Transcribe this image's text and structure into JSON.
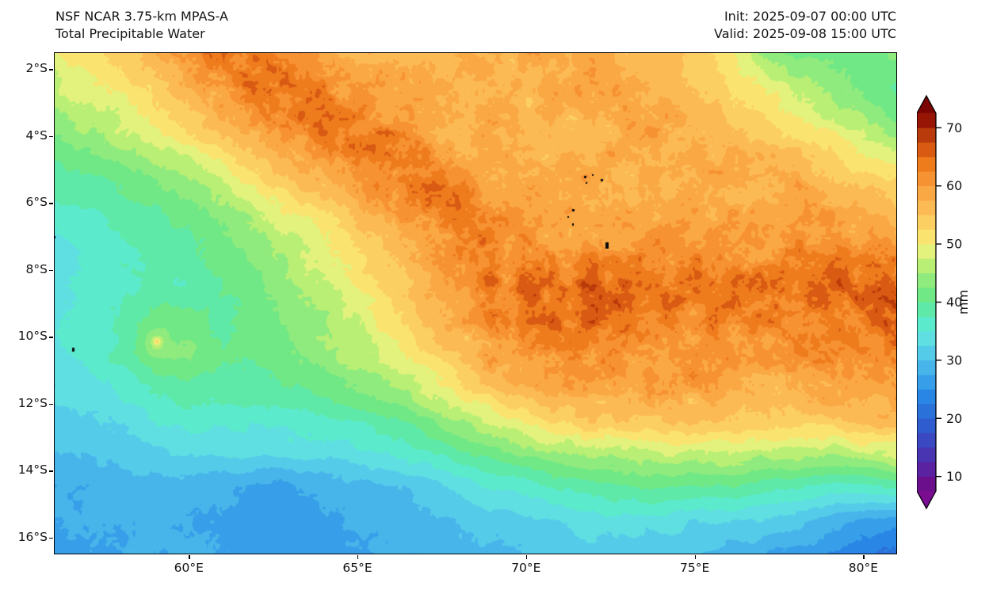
{
  "header": {
    "title_line1": "NSF NCAR 3.75-km MPAS-A",
    "title_line2": "Total Precipitable Water",
    "init_text": "Init: 2025-09-07 00:00 UTC",
    "valid_text": "Valid: 2025-09-08 15:00 UTC"
  },
  "chart_data": {
    "type": "heatmap",
    "title": "Total Precipitable Water",
    "units": "mm",
    "colorbar_label": "mm",
    "lon_min": 56,
    "lon_max": 81,
    "lat_min": 1.5,
    "lat_max": 16.5,
    "x_ticks": [
      {
        "value": 60,
        "label": "60°E"
      },
      {
        "value": 65,
        "label": "65°E"
      },
      {
        "value": 70,
        "label": "70°E"
      },
      {
        "value": 75,
        "label": "75°E"
      },
      {
        "value": 80,
        "label": "80°E"
      }
    ],
    "y_ticks": [
      {
        "value": 2,
        "label": "2°S"
      },
      {
        "value": 4,
        "label": "4°S"
      },
      {
        "value": 6,
        "label": "6°S"
      },
      {
        "value": 8,
        "label": "8°S"
      },
      {
        "value": 10,
        "label": "10°S"
      },
      {
        "value": 12,
        "label": "12°S"
      },
      {
        "value": 14,
        "label": "14°S"
      },
      {
        "value": 16,
        "label": "16°S"
      }
    ],
    "colorbar_ticks": [
      70,
      60,
      50,
      40,
      30,
      20,
      10
    ],
    "level_min": 7.5,
    "level_step": 2.5,
    "colors": [
      "#6b0f8c",
      "#5a21a0",
      "#4934b2",
      "#3a48c2",
      "#2f5ccf",
      "#2a71da",
      "#2a86e4",
      "#379fe9",
      "#47b5ea",
      "#55cbea",
      "#5fdfe2",
      "#5ceacd",
      "#5fe9a8",
      "#70e886",
      "#8feb7d",
      "#b8ef74",
      "#e2f27c",
      "#fbe370",
      "#fccf63",
      "#fcba55",
      "#faa843",
      "#f79232",
      "#ee7c1d",
      "#d95a12",
      "#b93a0a",
      "#961505"
    ],
    "under_color": "#7a0d92",
    "over_color": "#7a0503",
    "grid_lons": [
      56,
      57,
      58,
      59,
      60,
      61,
      62,
      63,
      64,
      65,
      66,
      67,
      68,
      69,
      70,
      71,
      72,
      73,
      74,
      75,
      76,
      77,
      78,
      79,
      80,
      81
    ],
    "grid_lats": [
      1.5,
      2.5,
      3.5,
      4.5,
      5.5,
      6.5,
      7.5,
      8.5,
      9.5,
      10.5,
      11.5,
      12.5,
      13.5,
      14.5,
      15.5,
      16.5
    ],
    "values": [
      [
        50,
        52,
        54,
        57,
        60,
        64,
        63,
        60,
        58,
        57,
        57,
        57,
        57,
        58,
        58,
        58,
        58,
        57,
        56,
        54,
        50,
        45,
        41,
        42,
        40,
        43
      ],
      [
        47,
        49,
        51,
        54,
        57,
        61,
        64,
        65,
        62,
        59,
        58,
        57,
        57,
        57,
        57,
        58,
        58,
        58,
        57,
        55,
        53,
        50,
        47,
        44,
        42,
        40
      ],
      [
        44,
        46,
        48,
        50,
        53,
        57,
        60,
        63,
        65,
        63,
        60,
        58,
        57,
        57,
        57,
        57,
        57,
        58,
        58,
        57,
        55,
        53,
        50,
        48,
        45,
        42
      ],
      [
        41,
        42,
        44,
        46,
        49,
        52,
        55,
        58,
        62,
        65,
        64,
        62,
        59,
        58,
        57,
        57,
        57,
        58,
        58,
        58,
        58,
        57,
        55,
        53,
        50,
        48
      ],
      [
        38,
        39,
        40,
        42,
        44,
        47,
        50,
        53,
        57,
        60,
        63,
        65,
        62,
        59,
        58,
        58,
        58,
        58,
        58,
        58,
        59,
        58,
        58,
        56,
        55,
        53
      ],
      [
        36,
        37,
        38,
        39,
        41,
        43,
        46,
        49,
        52,
        55,
        58,
        62,
        64,
        62,
        60,
        59,
        58,
        58,
        59,
        59,
        59,
        60,
        60,
        59,
        58,
        56
      ],
      [
        33,
        36,
        37,
        38,
        39,
        41,
        43,
        46,
        49,
        52,
        55,
        59,
        62,
        63,
        62,
        61,
        61,
        61,
        61,
        61,
        61,
        61,
        62,
        62,
        61,
        60
      ],
      [
        34,
        36,
        37,
        38,
        38,
        40,
        42,
        44,
        47,
        50,
        53,
        57,
        60,
        63,
        65,
        66,
        66,
        65,
        64,
        64,
        64,
        64,
        65,
        65,
        66,
        66
      ],
      [
        35,
        36,
        38,
        41,
        41,
        39,
        41,
        43,
        45,
        48,
        51,
        55,
        58,
        62,
        64,
        65,
        65,
        64,
        63,
        63,
        62,
        63,
        63,
        64,
        64,
        65
      ],
      [
        34,
        36,
        38,
        43,
        43,
        40,
        41,
        42,
        44,
        46,
        49,
        52,
        55,
        59,
        61,
        62,
        62,
        62,
        61,
        61,
        60,
        60,
        61,
        62,
        63,
        63
      ],
      [
        33,
        34,
        36,
        38,
        39,
        38,
        39,
        40,
        41,
        43,
        45,
        48,
        51,
        55,
        58,
        59,
        59,
        59,
        59,
        59,
        58,
        58,
        58,
        59,
        60,
        60
      ],
      [
        31,
        32,
        33,
        35,
        36,
        36,
        36,
        36,
        37,
        38,
        40,
        42,
        45,
        48,
        51,
        53,
        55,
        55,
        55,
        55,
        55,
        54,
        54,
        55,
        56,
        56
      ],
      [
        30,
        30,
        31,
        32,
        33,
        33,
        33,
        33,
        33,
        34,
        35,
        37,
        39,
        41,
        43,
        45,
        46,
        47,
        47,
        47,
        47,
        46,
        46,
        46,
        47,
        48
      ],
      [
        28,
        28,
        29,
        29,
        29,
        28,
        27,
        27,
        28,
        29,
        30,
        31,
        33,
        35,
        36,
        38,
        39,
        40,
        40,
        40,
        40,
        39,
        38,
        37,
        37,
        38
      ],
      [
        28,
        28,
        28,
        28,
        28,
        27,
        26,
        26,
        27,
        28,
        28,
        29,
        30,
        31,
        32,
        33,
        34,
        34,
        34,
        33,
        33,
        32,
        31,
        29,
        27,
        26
      ],
      [
        27,
        27,
        27,
        28,
        28,
        27,
        26,
        26,
        26,
        27,
        28,
        28,
        29,
        29,
        30,
        31,
        31,
        31,
        31,
        30,
        29,
        28,
        26,
        25,
        23,
        22
      ]
    ],
    "local_maxima": [
      {
        "lon": 59.05,
        "lat": 10.15,
        "amp": 5,
        "radius": 0.33
      },
      {
        "lon": 59.05,
        "lat": 10.15,
        "amp": 7,
        "radius": 0.09
      }
    ],
    "islands": [
      {
        "lon": 56.02,
        "lat": 7.01,
        "w": 2,
        "h": 3
      },
      {
        "lon": 56.57,
        "lat": 10.38,
        "w": 3,
        "h": 5
      },
      {
        "lon": 71.74,
        "lat": 5.21,
        "w": 3,
        "h": 3
      },
      {
        "lon": 71.98,
        "lat": 5.17,
        "w": 2,
        "h": 2
      },
      {
        "lon": 72.24,
        "lat": 5.31,
        "w": 3,
        "h": 3
      },
      {
        "lon": 71.8,
        "lat": 5.41,
        "w": 2,
        "h": 2
      },
      {
        "lon": 71.39,
        "lat": 6.21,
        "w": 3,
        "h": 3
      },
      {
        "lon": 71.25,
        "lat": 6.41,
        "w": 2,
        "h": 2
      },
      {
        "lon": 71.39,
        "lat": 6.64,
        "w": 2,
        "h": 3
      },
      {
        "lon": 72.4,
        "lat": 7.28,
        "w": 4,
        "h": 8
      }
    ]
  }
}
